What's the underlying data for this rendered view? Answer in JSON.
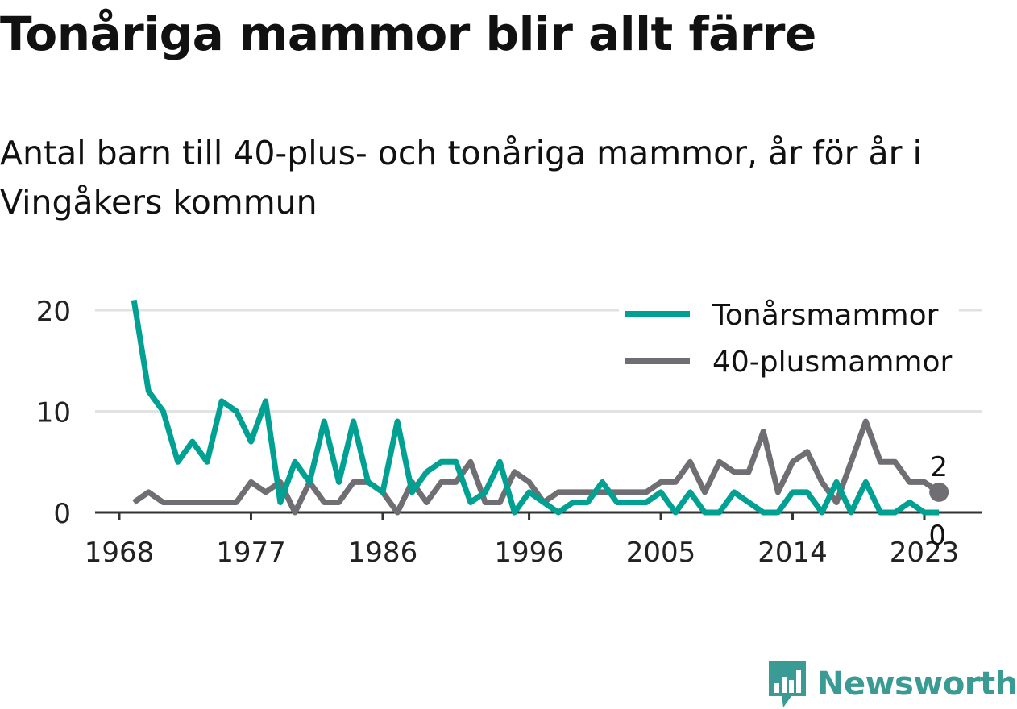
{
  "header": {
    "title": "Tonåriga mammor blir allt färre",
    "subtitle": "Antal barn till 40-plus- och tonåriga mammor, år för år i Vingåkers kommun"
  },
  "brand": {
    "name": "Newsworthy",
    "icon": "newsworthy-logo-icon",
    "color": "#3a9b95"
  },
  "chart_data": {
    "type": "line",
    "title": "Tonåriga mammor blir allt färre",
    "subtitle": "Antal barn till 40-plus- och tonåriga mammor, år för år i Vingåkers kommun",
    "xlabel": "",
    "ylabel": "",
    "xlim": [
      1966,
      2027
    ],
    "ylim": [
      0,
      20
    ],
    "x_ticks": [
      1968,
      1977,
      1986,
      1996,
      2005,
      2014,
      2023
    ],
    "y_ticks": [
      0,
      10,
      20
    ],
    "grid": true,
    "legend_position": "top-right",
    "x": [
      1969,
      1970,
      1971,
      1972,
      1973,
      1974,
      1975,
      1976,
      1977,
      1978,
      1979,
      1980,
      1981,
      1982,
      1983,
      1984,
      1985,
      1986,
      1987,
      1988,
      1989,
      1990,
      1991,
      1992,
      1993,
      1994,
      1995,
      1996,
      1997,
      1998,
      1999,
      2000,
      2001,
      2002,
      2003,
      2004,
      2005,
      2006,
      2007,
      2008,
      2009,
      2010,
      2011,
      2012,
      2013,
      2014,
      2015,
      2016,
      2017,
      2018,
      2019,
      2020,
      2021,
      2022,
      2023,
      2024
    ],
    "series": [
      {
        "name": "Tonårsmammor",
        "color": "#00a193",
        "values": [
          21,
          12,
          10,
          5,
          7,
          5,
          11,
          10,
          7,
          11,
          1,
          5,
          3,
          9,
          3,
          9,
          3,
          2,
          9,
          2,
          4,
          5,
          5,
          1,
          2,
          5,
          0,
          2,
          1,
          0,
          1,
          1,
          3,
          1,
          1,
          1,
          2,
          0,
          2,
          0,
          0,
          2,
          1,
          0,
          0,
          2,
          2,
          0,
          3,
          0,
          3,
          0,
          0,
          1,
          0,
          0
        ],
        "end_label": "0"
      },
      {
        "name": "40-plusmammor",
        "color": "#6f6e73",
        "values": [
          1,
          2,
          1,
          1,
          1,
          1,
          1,
          1,
          3,
          2,
          3,
          0,
          3,
          1,
          1,
          3,
          3,
          2,
          0,
          3,
          1,
          3,
          3,
          5,
          1,
          1,
          4,
          3,
          1,
          2,
          2,
          2,
          2,
          2,
          2,
          2,
          3,
          3,
          5,
          2,
          5,
          4,
          4,
          8,
          2,
          5,
          6,
          3,
          1,
          5,
          9,
          5,
          5,
          3,
          3,
          2
        ],
        "end_label": "2"
      }
    ]
  }
}
